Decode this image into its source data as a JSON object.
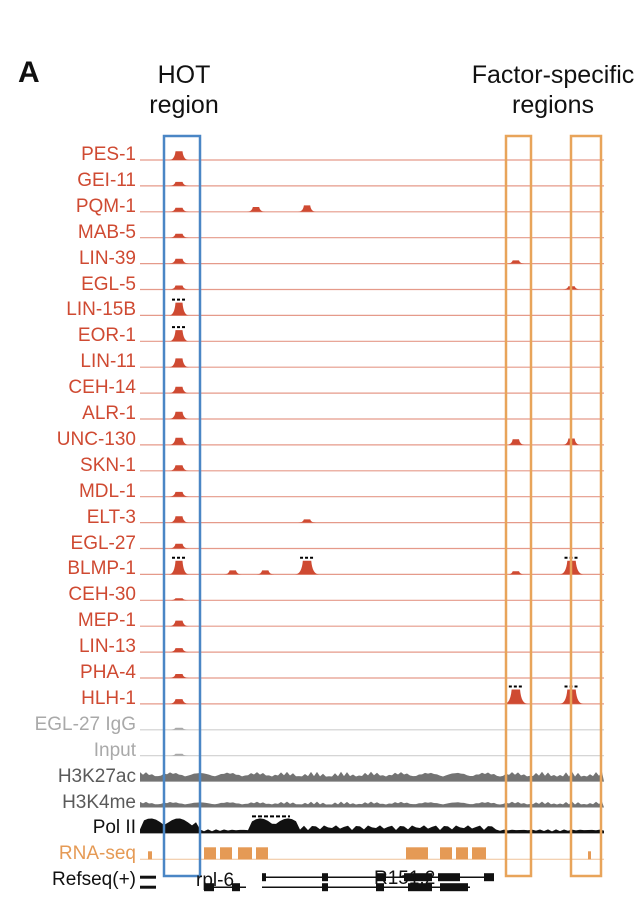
{
  "panel_label": "A",
  "hot_region": {
    "title_line1": "HOT",
    "title_line2": "region"
  },
  "factor_regions": {
    "title_line1": "Factor-specific",
    "title_line2": "regions"
  },
  "colors": {
    "tf": "#cf4a32",
    "tf_baseline": "#e59a8a",
    "control": "#a9a9a9",
    "histone": "#5a5a5a",
    "polii": "#111111",
    "rnaseq": "#e59a55",
    "hot_box": "#4a86c5",
    "factor_box": "#e8a45a",
    "refseq": "#111111"
  },
  "tracks": [
    {
      "label": "PES-1",
      "kind": "tf",
      "hot": 0.55,
      "peaks": []
    },
    {
      "label": "GEI-11",
      "kind": "tf",
      "hot": 0.25,
      "peaks": []
    },
    {
      "label": "PQM-1",
      "kind": "tf",
      "hot": 0.25,
      "peaks": [
        {
          "pos": 0.25,
          "h": 0.3
        },
        {
          "pos": 0.36,
          "h": 0.4
        }
      ]
    },
    {
      "label": "MAB-5",
      "kind": "tf",
      "hot": 0.25,
      "peaks": []
    },
    {
      "label": "LIN-39",
      "kind": "tf",
      "hot": 0.3,
      "peaks": [
        {
          "pos": 0.81,
          "h": 0.2
        }
      ]
    },
    {
      "label": "EGL-5",
      "kind": "tf",
      "hot": 0.25,
      "peaks": [
        {
          "pos": 0.93,
          "h": 0.2
        }
      ]
    },
    {
      "label": "LIN-15B",
      "kind": "tf",
      "hot": 0.8,
      "saturated": true,
      "peaks": []
    },
    {
      "label": "EOR-1",
      "kind": "tf",
      "hot": 0.7,
      "saturated": true,
      "peaks": []
    },
    {
      "label": "LIN-11",
      "kind": "tf",
      "hot": 0.55,
      "peaks": []
    },
    {
      "label": "CEH-14",
      "kind": "tf",
      "hot": 0.4,
      "peaks": []
    },
    {
      "label": "ALR-1",
      "kind": "tf",
      "hot": 0.45,
      "peaks": []
    },
    {
      "label": "UNC-130",
      "kind": "tf",
      "hot": 0.45,
      "peaks": [
        {
          "pos": 0.81,
          "h": 0.35
        },
        {
          "pos": 0.93,
          "h": 0.4
        }
      ]
    },
    {
      "label": "SKN-1",
      "kind": "tf",
      "hot": 0.35,
      "peaks": []
    },
    {
      "label": "MDL-1",
      "kind": "tf",
      "hot": 0.3,
      "peaks": []
    },
    {
      "label": "ELT-3",
      "kind": "tf",
      "hot": 0.4,
      "peaks": [
        {
          "pos": 0.36,
          "h": 0.2
        }
      ]
    },
    {
      "label": "EGL-27",
      "kind": "tf",
      "hot": 0.3,
      "peaks": []
    },
    {
      "label": "BLMP-1",
      "kind": "tf",
      "hot": 0.85,
      "saturated": true,
      "peaks": [
        {
          "pos": 0.2,
          "h": 0.25
        },
        {
          "pos": 0.27,
          "h": 0.25
        },
        {
          "pos": 0.36,
          "h": 0.85,
          "sat": true
        },
        {
          "pos": 0.81,
          "h": 0.2
        },
        {
          "pos": 0.93,
          "h": 0.85,
          "sat": true
        }
      ]
    },
    {
      "label": "CEH-30",
      "kind": "tf",
      "hot": 0.1,
      "peaks": []
    },
    {
      "label": "MEP-1",
      "kind": "tf",
      "hot": 0.35,
      "peaks": []
    },
    {
      "label": "LIN-13",
      "kind": "tf",
      "hot": 0.25,
      "peaks": []
    },
    {
      "label": "PHA-4",
      "kind": "tf",
      "hot": 0.25,
      "peaks": []
    },
    {
      "label": "HLH-1",
      "kind": "tf",
      "hot": 0.3,
      "peaks": [
        {
          "pos": 0.81,
          "h": 0.9,
          "sat": true
        },
        {
          "pos": 0.93,
          "h": 0.9,
          "sat": true
        }
      ]
    },
    {
      "label": "EGL-27 IgG",
      "kind": "control",
      "hot": 0.05,
      "peaks": []
    },
    {
      "label": "Input",
      "kind": "control",
      "hot": 0.05,
      "peaks": []
    },
    {
      "label": "H3K27ac",
      "kind": "histone",
      "hot": 0.6,
      "peaks": []
    },
    {
      "label": "H3K4me",
      "kind": "histone",
      "hot": 0.4,
      "peaks": []
    },
    {
      "label": "Pol II",
      "kind": "polii",
      "hot": 0.9,
      "peaks": []
    },
    {
      "label": "RNA-seq",
      "kind": "rnaseq",
      "hot": 0.1,
      "peaks": []
    },
    {
      "label": "Refseq(+)",
      "kind": "refseq",
      "hot": 0,
      "peaks": []
    }
  ],
  "genes": [
    {
      "label": "rpl-6"
    },
    {
      "label": "R151.2"
    }
  ]
}
